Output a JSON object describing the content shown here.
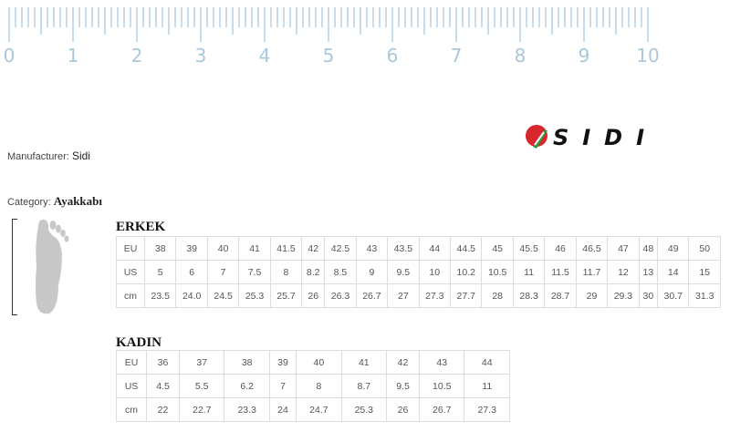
{
  "ruler": {
    "labels": [
      "0",
      "1",
      "2",
      "3",
      "4",
      "5",
      "6",
      "7",
      "8",
      "9",
      "10"
    ],
    "color": "#a9c8db"
  },
  "manufacturer": {
    "label": "Manufacturer:",
    "value": "Sidi"
  },
  "category": {
    "label": "Category:",
    "value": "Ayakkabı"
  },
  "logo": {
    "text": "SIDI",
    "colors": [
      "#d8262c",
      "#2a9a3a",
      "#111111"
    ]
  },
  "men": {
    "title": "ERKEK",
    "rows": [
      [
        "EU",
        "38",
        "39",
        "40",
        "41",
        "41.5",
        "42",
        "42.5",
        "43",
        "43.5",
        "44",
        "44.5",
        "45",
        "45.5",
        "46",
        "46.5",
        "47",
        "48",
        "49",
        "50"
      ],
      [
        "US",
        "5",
        "6",
        "7",
        "7.5",
        "8",
        "8.2",
        "8.5",
        "9",
        "9.5",
        "10",
        "10.2",
        "10.5",
        "11",
        "11.5",
        "11.7",
        "12",
        "13",
        "14",
        "15"
      ],
      [
        "cm",
        "23.5",
        "24.0",
        "24.5",
        "25.3",
        "25.7",
        "26",
        "26.3",
        "26.7",
        "27",
        "27.3",
        "27.7",
        "28",
        "28.3",
        "28.7",
        "29",
        "29.3",
        "30",
        "30.7",
        "31.3"
      ]
    ]
  },
  "women": {
    "title": "KADIN",
    "rows": [
      [
        "EU",
        "36",
        "37",
        "38",
        "39",
        "40",
        "41",
        "42",
        "43",
        "44"
      ],
      [
        "US",
        "4.5",
        "5.5",
        "6.2",
        "7",
        "8",
        "8.7",
        "9.5",
        "10.5",
        "11"
      ],
      [
        "cm",
        "22",
        "22.7",
        "23.3",
        "24",
        "24.7",
        "25.3",
        "26",
        "26.7",
        "27.3"
      ]
    ]
  }
}
